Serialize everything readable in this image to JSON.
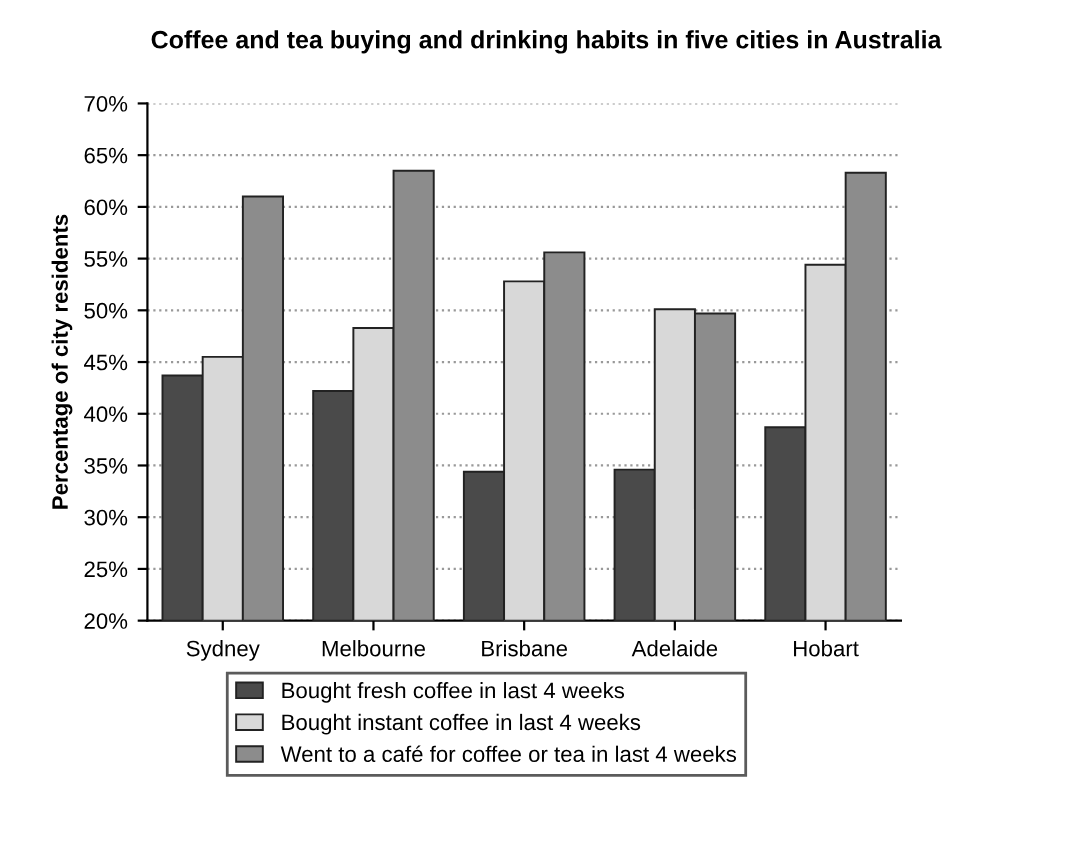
{
  "chart_data": {
    "type": "bar",
    "title": "Coffee and tea buying and drinking habits in five cities in Australia",
    "ylabel": "Percentage of city residents",
    "categories": [
      "Sydney",
      "Melbourne",
      "Brisbane",
      "Adelaide",
      "Hobart"
    ],
    "series": [
      {
        "name": "Bought fresh coffee in last 4 weeks",
        "color": "#4a4a4a",
        "values": [
          43.7,
          42.2,
          34.4,
          34.6,
          38.7
        ]
      },
      {
        "name": "Bought instant coffee in last 4 weeks",
        "color": "#d8d8d8",
        "values": [
          45.5,
          48.3,
          52.8,
          50.1,
          54.4
        ]
      },
      {
        "name": "Went to a café for coffee or tea in last 4 weeks",
        "color": "#8c8c8c",
        "values": [
          61.0,
          63.5,
          55.6,
          49.7,
          63.3
        ]
      }
    ],
    "ylim": [
      20,
      70
    ],
    "yticks": [
      {
        "value": 20,
        "label": "20%"
      },
      {
        "value": 25,
        "label": "25%"
      },
      {
        "value": 30,
        "label": "30%"
      },
      {
        "value": 35,
        "label": "35%"
      },
      {
        "value": 40,
        "label": "40%"
      },
      {
        "value": 45,
        "label": "45%"
      },
      {
        "value": 50,
        "label": "50%"
      },
      {
        "value": 55,
        "label": "55%"
      },
      {
        "value": 60,
        "label": "60%"
      },
      {
        "value": 65,
        "label": "65%"
      },
      {
        "value": 70,
        "label": "70%"
      }
    ],
    "grid": "y",
    "legend": "bottom"
  }
}
